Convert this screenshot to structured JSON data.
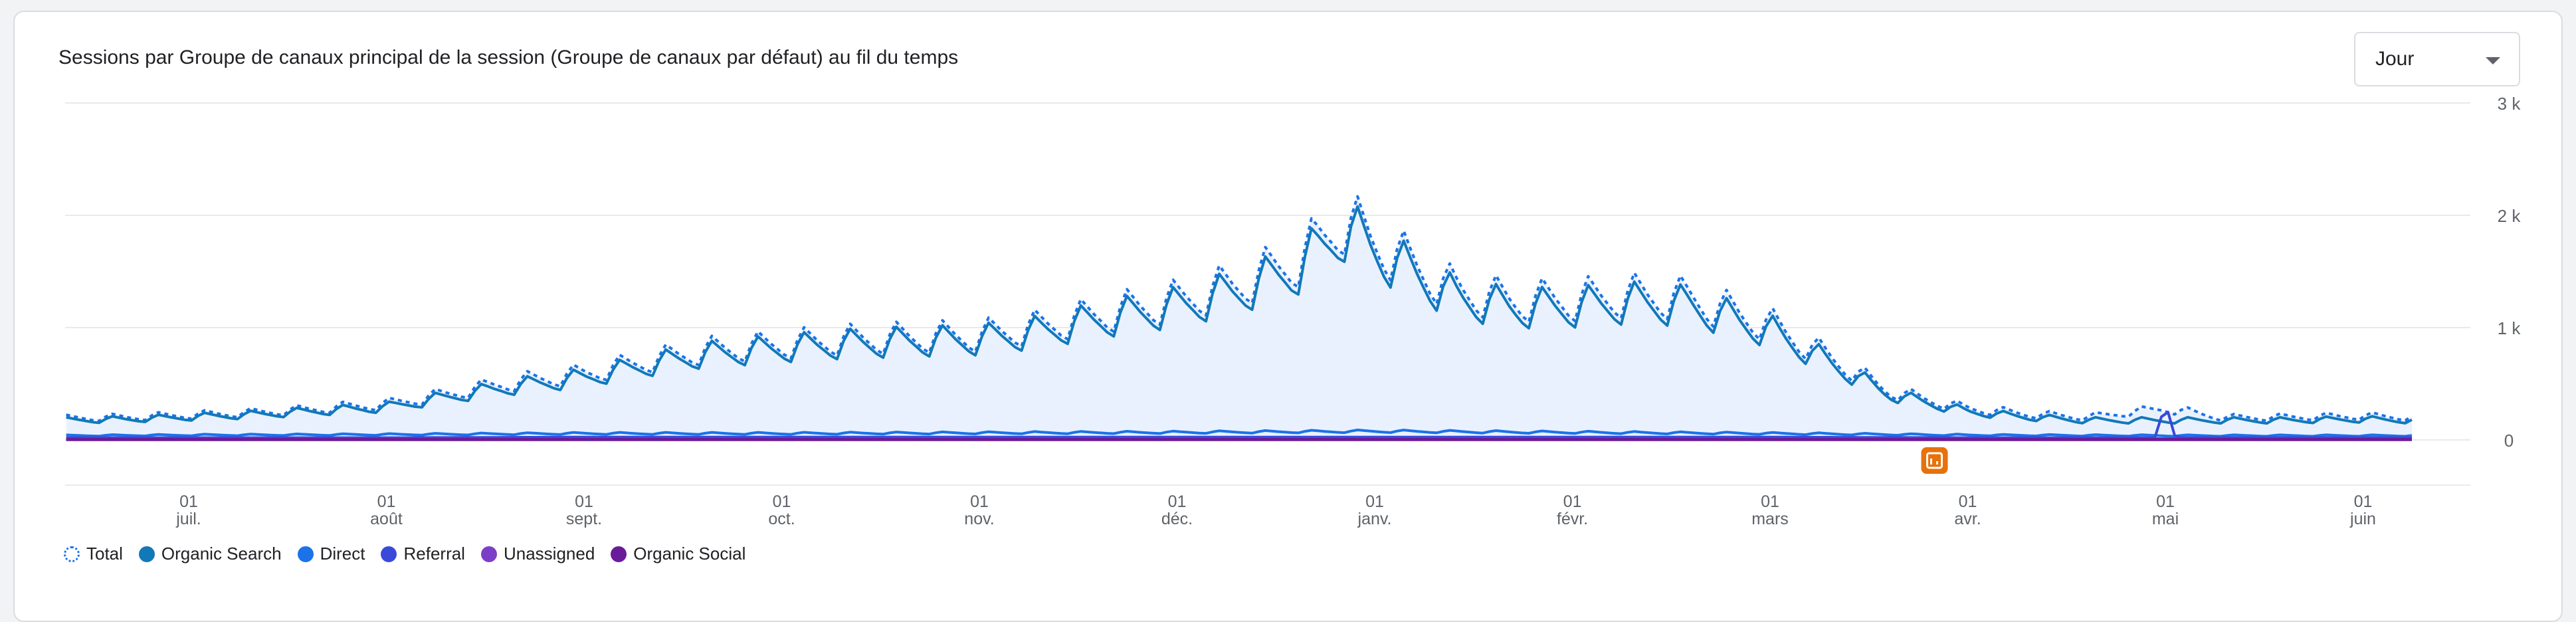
{
  "card": {
    "title": "Sessions par Groupe de canaux principal de la session (Groupe de canaux par défaut) au fil du temps",
    "dropdown_value": "Jour"
  },
  "colors": {
    "total": "#1a73e8",
    "organic_search": "#1179b8",
    "direct": "#1a73e8",
    "referral": "#3949d8",
    "unassigned": "#7b3fc7",
    "organic_social": "#6a1b9a",
    "area_fill": "#e8f0fe",
    "grid": "#e8eaed",
    "annotation": "#e8710a"
  },
  "legend": [
    {
      "label": "Total",
      "color": "#1a73e8",
      "dashed": true
    },
    {
      "label": "Organic Search",
      "color": "#1179b8",
      "dashed": false
    },
    {
      "label": "Direct",
      "color": "#1a73e8",
      "dashed": false
    },
    {
      "label": "Referral",
      "color": "#3949d8",
      "dashed": false
    },
    {
      "label": "Unassigned",
      "color": "#7b3fc7",
      "dashed": false
    },
    {
      "label": "Organic Social",
      "color": "#6a1b9a",
      "dashed": false
    }
  ],
  "annotation": {
    "icon": "note-icon",
    "month_index": 9.0
  },
  "chart_data": {
    "type": "line",
    "title": "Sessions par Groupe de canaux principal de la session (Groupe de canaux par défaut) au fil du temps",
    "y_ticks": [
      "0",
      "1 k",
      "2 k",
      "3 k"
    ],
    "ylim": [
      0,
      3000
    ],
    "grid": true,
    "legend_placement": "bottom-left",
    "x_ticks": [
      {
        "day": "01",
        "month": "juil."
      },
      {
        "day": "01",
        "month": "août"
      },
      {
        "day": "01",
        "month": "sept."
      },
      {
        "day": "01",
        "month": "oct."
      },
      {
        "day": "01",
        "month": "nov."
      },
      {
        "day": "01",
        "month": "déc."
      },
      {
        "day": "01",
        "month": "janv."
      },
      {
        "day": "01",
        "month": "févr."
      },
      {
        "day": "01",
        "month": "mars"
      },
      {
        "day": "01",
        "month": "avr."
      },
      {
        "day": "01",
        "month": "mai"
      },
      {
        "day": "01",
        "month": "juin"
      }
    ],
    "x_range_months": [
      -0.62,
      11.25
    ],
    "series": [
      {
        "name": "Total",
        "x": [
          -0.62,
          -0.3,
          0,
          0.3,
          0.6,
          1,
          1.3,
          1.6,
          2,
          2.3,
          2.6,
          3,
          3.3,
          3.6,
          4,
          4.3,
          4.6,
          5,
          5.3,
          5.6,
          5.85,
          6,
          6.15,
          6.4,
          6.7,
          7,
          7.3,
          7.6,
          8,
          8.3,
          8.6,
          9,
          9.3,
          9.6,
          10,
          10.3,
          10.6,
          11,
          11.25
        ],
        "y": [
          200,
          210,
          230,
          250,
          280,
          330,
          420,
          520,
          610,
          720,
          820,
          880,
          920,
          940,
          960,
          1040,
          1150,
          1280,
          1430,
          1640,
          2020,
          1820,
          1660,
          1380,
          1280,
          1290,
          1330,
          1300,
          1060,
          760,
          450,
          290,
          240,
          210,
          290,
          205,
          210,
          220,
          210
        ]
      },
      {
        "name": "Organic Search",
        "x": [
          -0.62,
          -0.3,
          0,
          0.3,
          0.6,
          1,
          1.3,
          1.6,
          2,
          2.3,
          2.6,
          3,
          3.3,
          3.6,
          4,
          4.3,
          4.6,
          5,
          5.3,
          5.6,
          5.85,
          6,
          6.15,
          6.4,
          6.7,
          7,
          7.3,
          7.6,
          8,
          8.3,
          8.6,
          9,
          9.3,
          9.6,
          10,
          10.3,
          10.6,
          11,
          11.25
        ],
        "y": [
          180,
          190,
          210,
          230,
          260,
          300,
          390,
          480,
          570,
          680,
          780,
          840,
          880,
          900,
          920,
          990,
          1100,
          1220,
          1360,
          1560,
          1940,
          1740,
          1580,
          1310,
          1210,
          1220,
          1260,
          1230,
          1000,
          710,
          420,
          260,
          210,
          180,
          180,
          180,
          180,
          190,
          180
        ]
      },
      {
        "name": "Direct",
        "x": [
          -0.62,
          0,
          1,
          2,
          3,
          4,
          5,
          6,
          7,
          8,
          9,
          10,
          11,
          11.25
        ],
        "y": [
          40,
          45,
          50,
          60,
          60,
          65,
          70,
          80,
          70,
          60,
          45,
          40,
          40,
          40
        ]
      },
      {
        "name": "Referral",
        "x": [
          -0.62,
          0,
          1,
          2,
          3,
          4,
          5,
          6,
          7,
          8,
          9,
          9.95,
          10,
          10.05,
          11,
          11.25
        ],
        "y": [
          20,
          20,
          20,
          25,
          25,
          25,
          25,
          25,
          25,
          25,
          20,
          20,
          330,
          20,
          20,
          20
        ]
      },
      {
        "name": "Unassigned",
        "x": [
          -0.62,
          11.25
        ],
        "y": [
          8,
          8
        ]
      },
      {
        "name": "Organic Social",
        "x": [
          -0.62,
          11.25
        ],
        "y": [
          4,
          4
        ]
      }
    ]
  }
}
